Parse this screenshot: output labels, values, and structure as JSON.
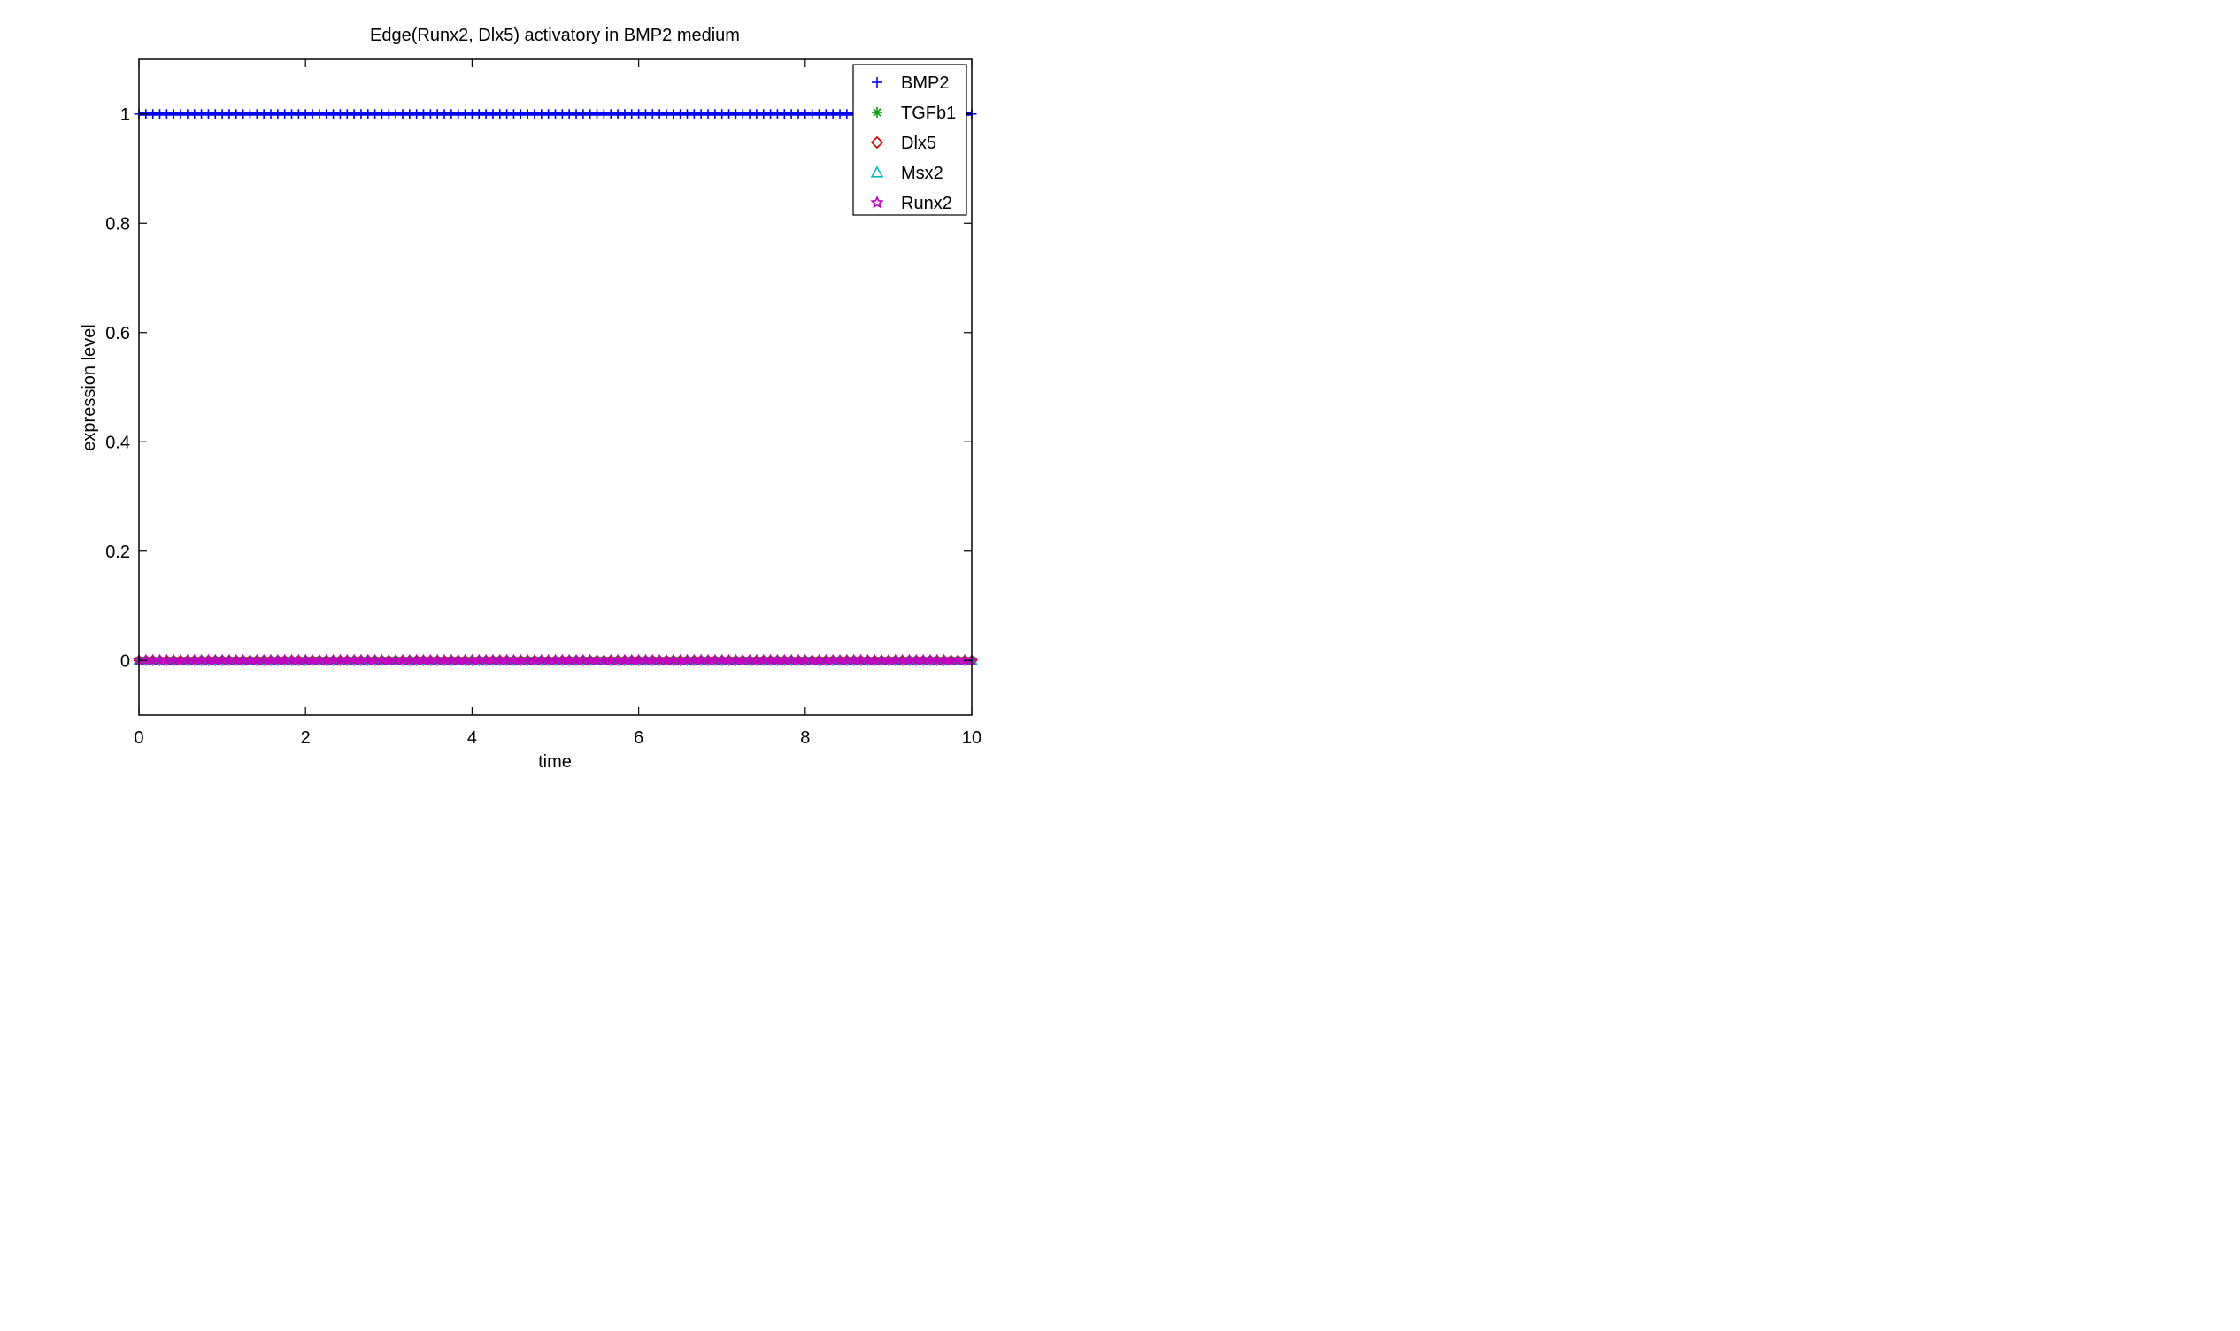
{
  "chart_data": {
    "type": "line",
    "title": "Edge(Runx2, Dlx5) activatory in BMP2 medium",
    "xlabel": "time",
    "ylabel": "expression level",
    "xlim": [
      0,
      10
    ],
    "ylim": [
      -0.1,
      1.1
    ],
    "xticks": [
      0,
      2,
      4,
      6,
      8,
      10
    ],
    "yticks": [
      0,
      0.2,
      0.4,
      0.6,
      0.8,
      1
    ],
    "ytick_labels": [
      "0",
      "0.2",
      "0.4",
      "0.6",
      "0.8",
      "1"
    ],
    "grid": false,
    "legend_position": "top-right",
    "x_range": [
      0,
      10
    ],
    "series": [
      {
        "name": "BMP2",
        "marker": "plus",
        "color": "#0000ff",
        "value": 1
      },
      {
        "name": "TGFb1",
        "marker": "asterisk",
        "color": "#00a000",
        "value": 0
      },
      {
        "name": "Dlx5",
        "marker": "diamond",
        "color": "#cc0000",
        "value": 0
      },
      {
        "name": "Msx2",
        "marker": "triangle",
        "color": "#00bfbf",
        "value": 0
      },
      {
        "name": "Runx2",
        "marker": "star",
        "color": "#bf00bf",
        "value": 0
      }
    ]
  }
}
